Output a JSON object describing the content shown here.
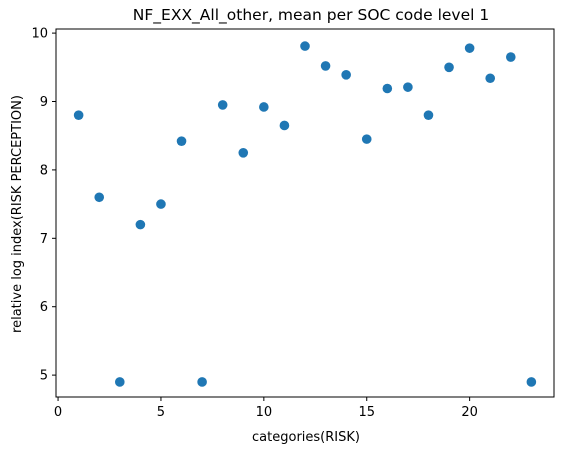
{
  "chart_data": {
    "type": "scatter",
    "title": "NF_EXX_All_other, mean per SOC code level 1",
    "xlabel": "categories(RISK)",
    "ylabel": "relative log index(RISK PERCEPTION)",
    "xlim": [
      -0.1,
      24.1
    ],
    "ylim": [
      4.68,
      10.06
    ],
    "x_ticks": [
      0,
      5,
      10,
      15,
      20
    ],
    "y_ticks": [
      5,
      6,
      7,
      8,
      9,
      10
    ],
    "grid": false,
    "marker_color": "#1f77b4",
    "points": [
      {
        "x": 1,
        "y": 8.8
      },
      {
        "x": 2,
        "y": 7.6
      },
      {
        "x": 3,
        "y": 4.9
      },
      {
        "x": 4,
        "y": 7.2
      },
      {
        "x": 5,
        "y": 7.5
      },
      {
        "x": 6,
        "y": 8.42
      },
      {
        "x": 7,
        "y": 4.9
      },
      {
        "x": 8,
        "y": 8.95
      },
      {
        "x": 9,
        "y": 8.25
      },
      {
        "x": 10,
        "y": 8.92
      },
      {
        "x": 11,
        "y": 8.65
      },
      {
        "x": 12,
        "y": 9.81
      },
      {
        "x": 13,
        "y": 9.52
      },
      {
        "x": 14,
        "y": 9.39
      },
      {
        "x": 15,
        "y": 8.45
      },
      {
        "x": 16,
        "y": 9.19
      },
      {
        "x": 17,
        "y": 9.21
      },
      {
        "x": 18,
        "y": 8.8
      },
      {
        "x": 19,
        "y": 9.5
      },
      {
        "x": 20,
        "y": 9.78
      },
      {
        "x": 21,
        "y": 9.34
      },
      {
        "x": 22,
        "y": 9.65
      },
      {
        "x": 23,
        "y": 4.9
      }
    ]
  }
}
